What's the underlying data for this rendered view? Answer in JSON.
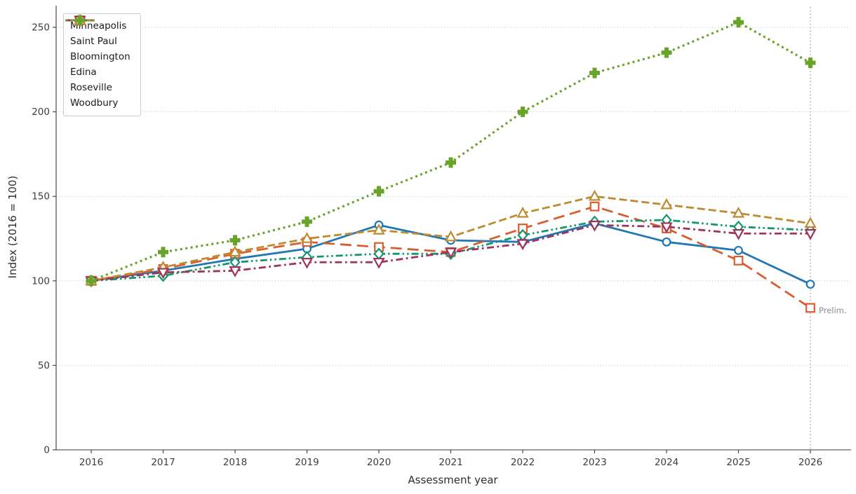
{
  "figure": {
    "xlabel": "Assessment year",
    "ylabel": "Index (2016 = 100)"
  },
  "chart_data": {
    "type": "line",
    "title": "",
    "xlabel": "Assessment year",
    "ylabel": "Index (2016 = 100)",
    "x": [
      2016,
      2017,
      2018,
      2019,
      2020,
      2021,
      2022,
      2023,
      2024,
      2025,
      2026
    ],
    "xtick_labels": [
      "2016",
      "2017",
      "2018",
      "2019",
      "2020",
      "2021",
      "2022",
      "2023",
      "2024",
      "2025",
      "2026"
    ],
    "yticks": [
      0,
      50,
      100,
      150,
      200,
      250
    ],
    "ytick_labels": [
      "0",
      "50",
      "100",
      "150",
      "200",
      "250"
    ],
    "ylim": [
      0,
      263
    ],
    "grid": "horizontal dotted",
    "legend_position": "upper left",
    "vline_x": 2026,
    "annotation": {
      "text": "Prelim."
    },
    "series": [
      {
        "name": "Minneapolis",
        "color": "#1f77b4",
        "linestyle": "solid",
        "marker": "circle",
        "values": [
          100,
          106,
          113,
          119,
          133,
          124,
          123,
          134,
          123,
          118,
          98
        ]
      },
      {
        "name": "Saint Paul",
        "color": "#d95d2e",
        "linestyle": "dashed-long",
        "marker": "square",
        "values": [
          100,
          107,
          116,
          123,
          120,
          117,
          131,
          144,
          131,
          112,
          84
        ]
      },
      {
        "name": "Bloomington",
        "color": "#14976f",
        "linestyle": "dashdotdot",
        "marker": "diamond",
        "values": [
          100,
          103,
          111,
          114,
          116,
          116,
          127,
          135,
          136,
          132,
          130
        ]
      },
      {
        "name": "Edina",
        "color": "#bf8b30",
        "linestyle": "dashed",
        "marker": "triangle-up",
        "values": [
          100,
          108,
          117,
          125,
          130,
          126,
          140,
          150,
          145,
          140,
          134
        ]
      },
      {
        "name": "Roseville",
        "color": "#a0335c",
        "linestyle": "dashdot",
        "marker": "triangle-down",
        "values": [
          100,
          105,
          106,
          111,
          111,
          117,
          122,
          133,
          132,
          128,
          128
        ]
      },
      {
        "name": "Woodbury",
        "color": "#69a42a",
        "linestyle": "dotted",
        "marker": "plus",
        "values": [
          100,
          117,
          124,
          135,
          153,
          170,
          200,
          223,
          235,
          253,
          229
        ]
      }
    ]
  }
}
